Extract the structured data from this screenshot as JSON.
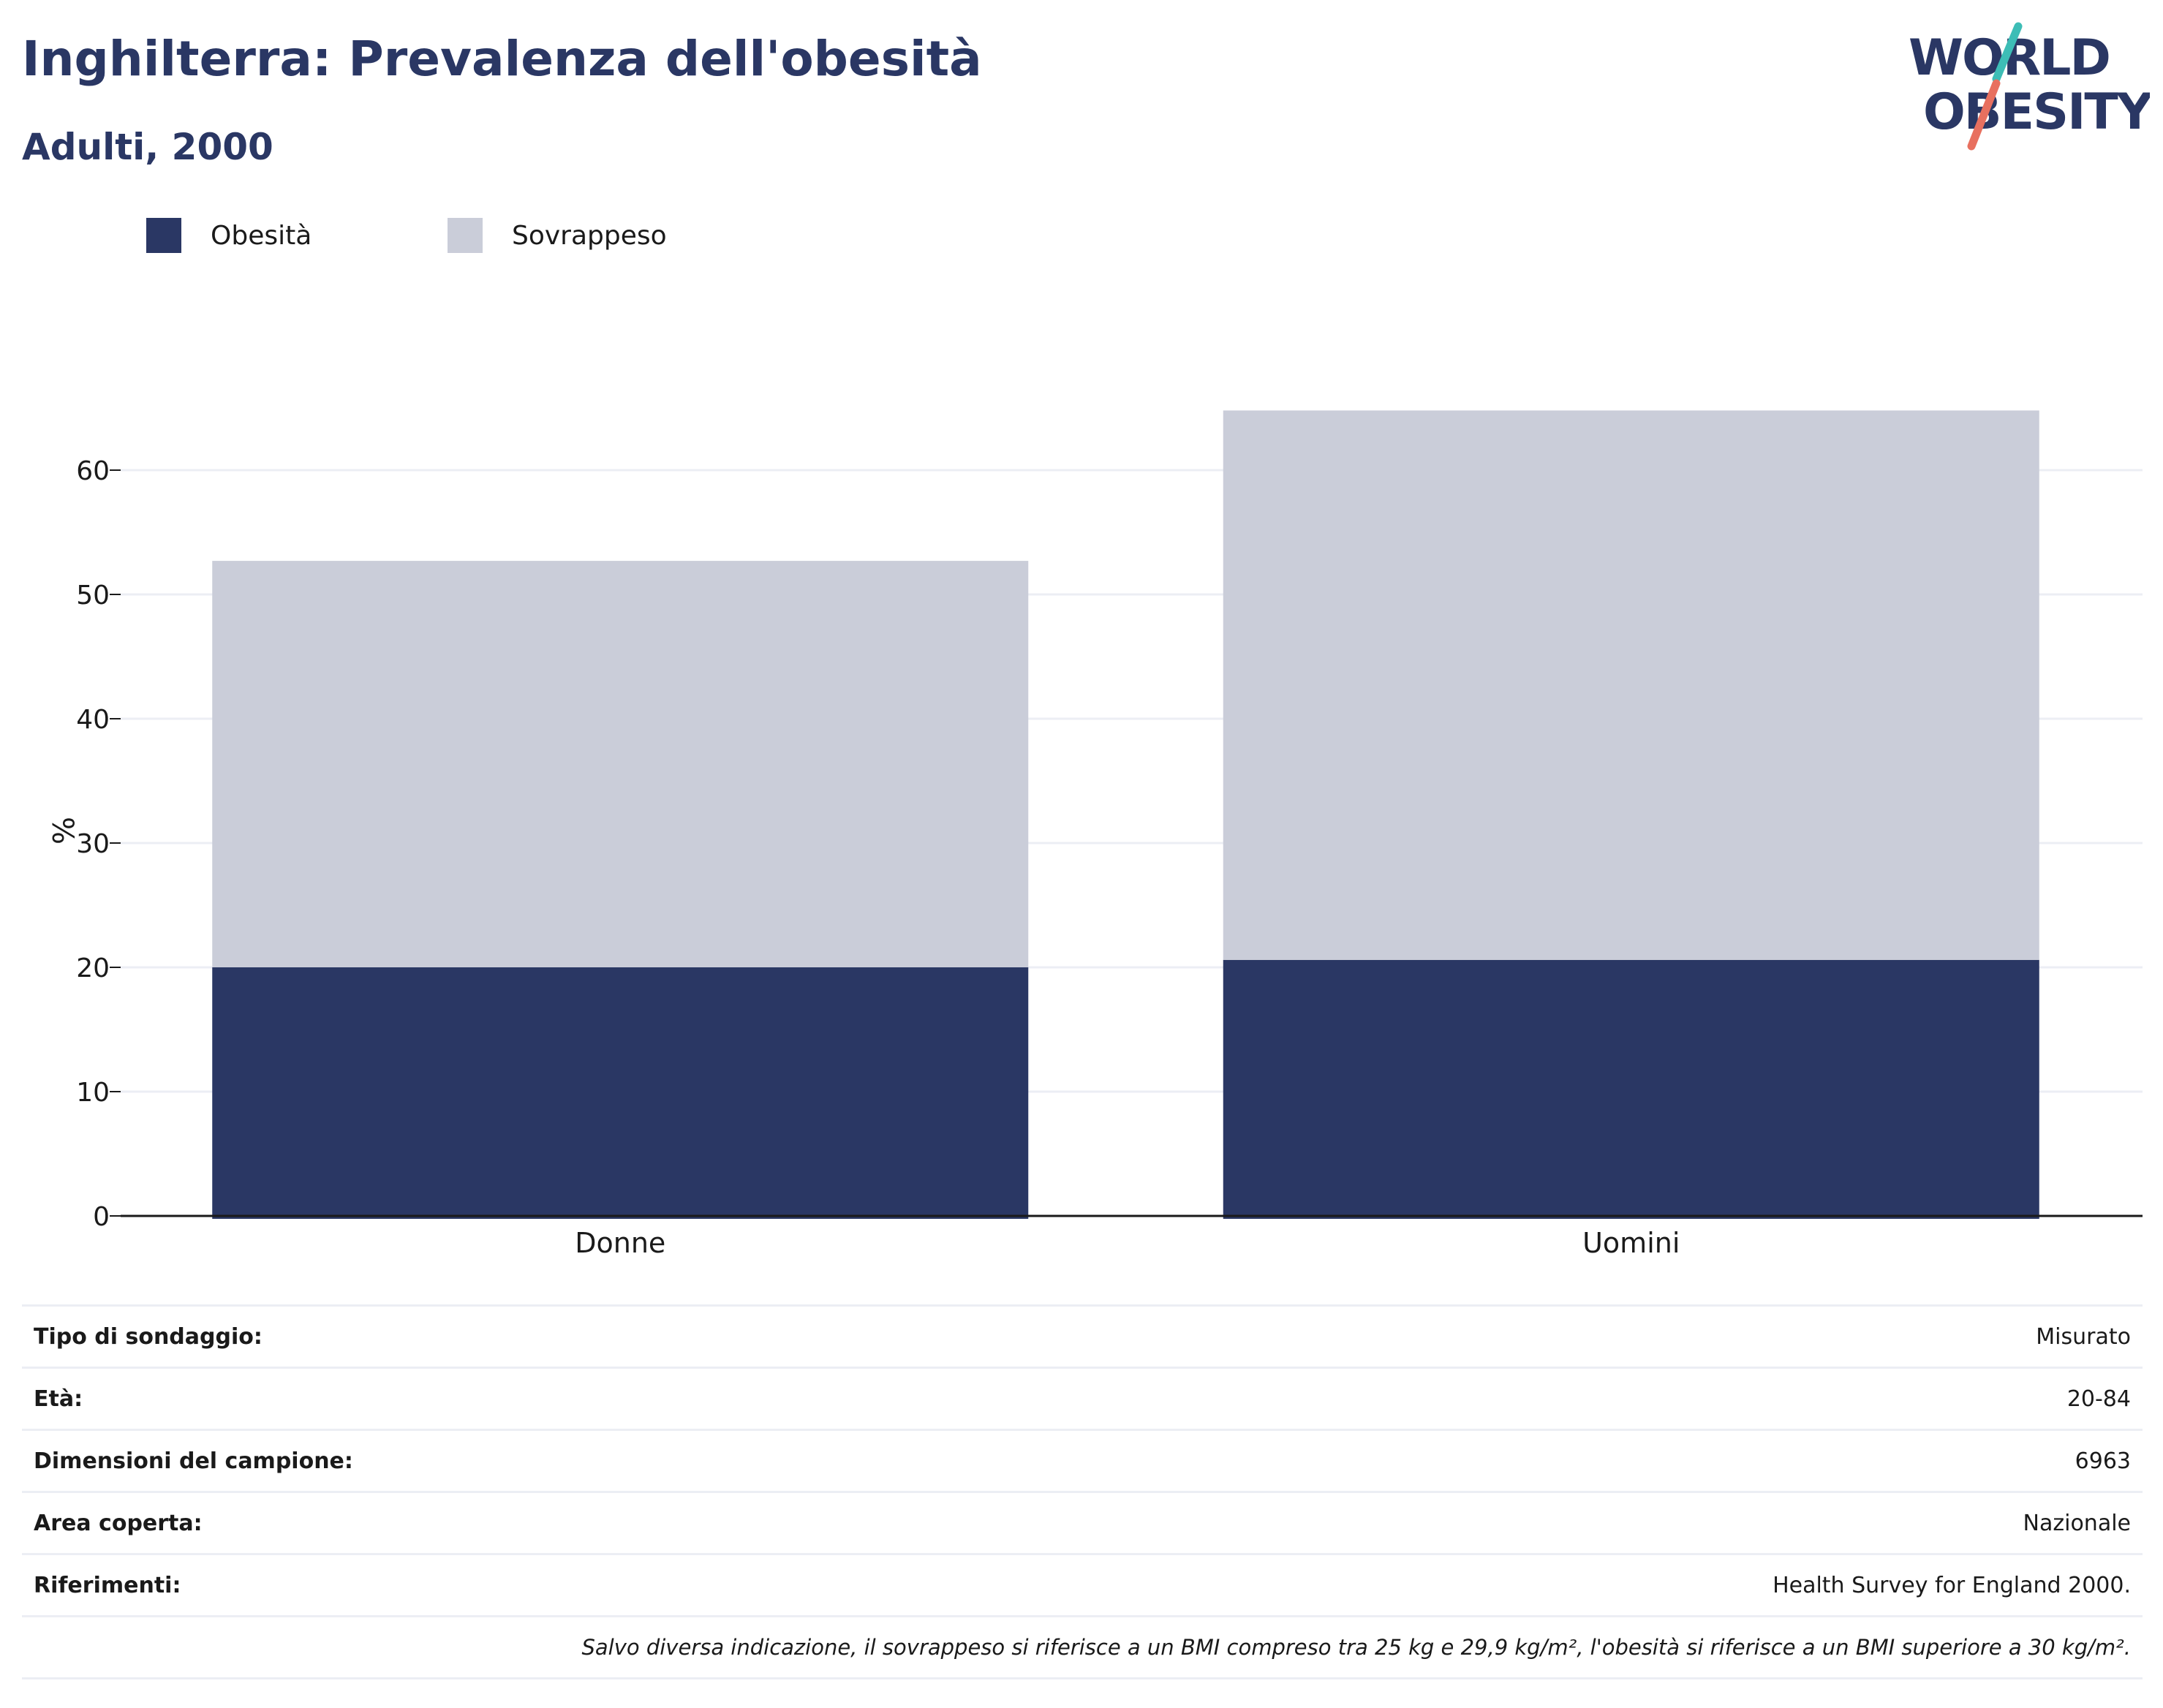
{
  "header": {
    "title": "Inghilterra: Prevalenza dell'obesità",
    "subtitle": "Adulti, 2000"
  },
  "logo": {
    "line1": "WORLD",
    "line2": "OBESITY",
    "colors": {
      "text": "#2a3764",
      "teal": "#3dbdb6",
      "coral": "#e8705f"
    }
  },
  "colors": {
    "obesity": "#2a3764",
    "overweight": "#cacdd9",
    "grid": "#eceef4",
    "axis": "#1a1a1a"
  },
  "chart_data": {
    "type": "bar",
    "stacked": true,
    "categories": [
      "Donne",
      "Uomini"
    ],
    "series": [
      {
        "name": "Obesità",
        "values": [
          20.0,
          20.6
        ],
        "color": "#2a3764"
      },
      {
        "name": "Sovrappeso",
        "values": [
          32.7,
          44.2
        ],
        "color": "#cacdd9"
      }
    ],
    "ylabel": "%",
    "ylim": [
      0,
      70
    ],
    "yticks": [
      0,
      10,
      20,
      30,
      40,
      50,
      60
    ],
    "grid": true,
    "legend_position": "top-left"
  },
  "meta": {
    "rows": [
      {
        "label": "Tipo di sondaggio:",
        "value": "Misurato"
      },
      {
        "label": "Età:",
        "value": "20-84"
      },
      {
        "label": "Dimensioni del campione:",
        "value": "6963"
      },
      {
        "label": "Area coperta:",
        "value": "Nazionale"
      },
      {
        "label": "Riferimenti:",
        "value": "Health Survey for England 2000."
      }
    ],
    "note": "Salvo diversa indicazione, il sovrappeso si riferisce a un BMI compreso tra 25 kg e 29,9 kg/m², l'obesità si riferisce a un BMI superiore a 30 kg/m²."
  }
}
